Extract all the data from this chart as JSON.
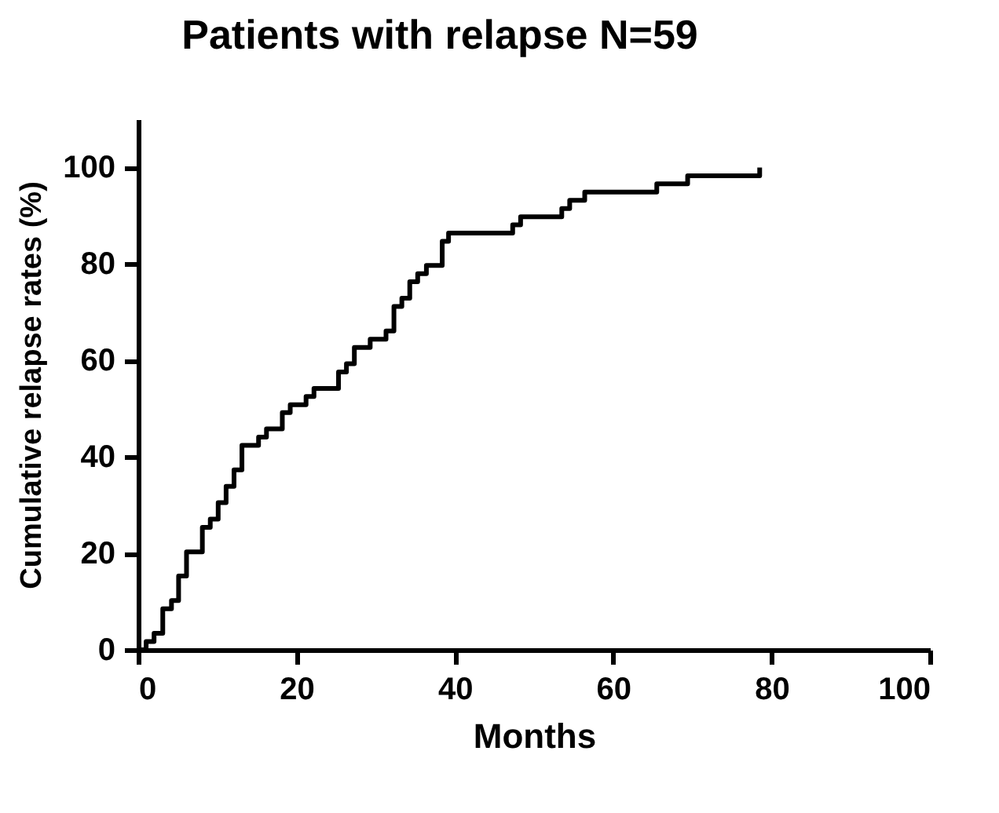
{
  "chart_data": {
    "type": "step",
    "title": "Patients with relapse N=59",
    "xlabel": "Months",
    "ylabel": "Cumulative relapse rates (%)",
    "x": [
      0,
      1,
      2,
      3.1,
      4.2,
      5.1,
      6.1,
      8.1,
      9.1,
      10.1,
      11.1,
      12.1,
      13.1,
      15.2,
      16.2,
      18.2,
      19.2,
      21.2,
      22.2,
      25.3,
      26.3,
      27.3,
      29.3,
      31.3,
      32.3,
      33.3,
      34.3,
      35.3,
      36.4,
      38.4,
      39.2,
      47.3,
      48.3,
      53.5,
      54.5,
      56.4,
      65.5,
      69.4,
      78.5,
      78.5
    ],
    "series": [
      {
        "color": "#000000",
        "values": [
          0,
          1.7,
          3.4,
          8.5,
          10.2,
          15.3,
          20.3,
          25.4,
          27.1,
          30.5,
          33.9,
          37.3,
          42.4,
          44.1,
          45.8,
          49.2,
          50.8,
          52.5,
          54.2,
          57.6,
          59.3,
          62.7,
          64.4,
          66.1,
          71.2,
          72.9,
          76.3,
          78,
          79.7,
          84.7,
          86.4,
          88.1,
          89.8,
          91.5,
          93.2,
          94.9,
          96.6,
          98.3,
          98.3,
          100
        ]
      }
    ],
    "xlim": [
      0,
      100
    ],
    "xticks": [
      0,
      20,
      40,
      60,
      80,
      100
    ],
    "ylim": [
      0,
      110
    ],
    "yticks": [
      0,
      20,
      40,
      60,
      80,
      100
    ],
    "grid": false,
    "legend": false,
    "marker": "none",
    "line_style": "solid"
  }
}
